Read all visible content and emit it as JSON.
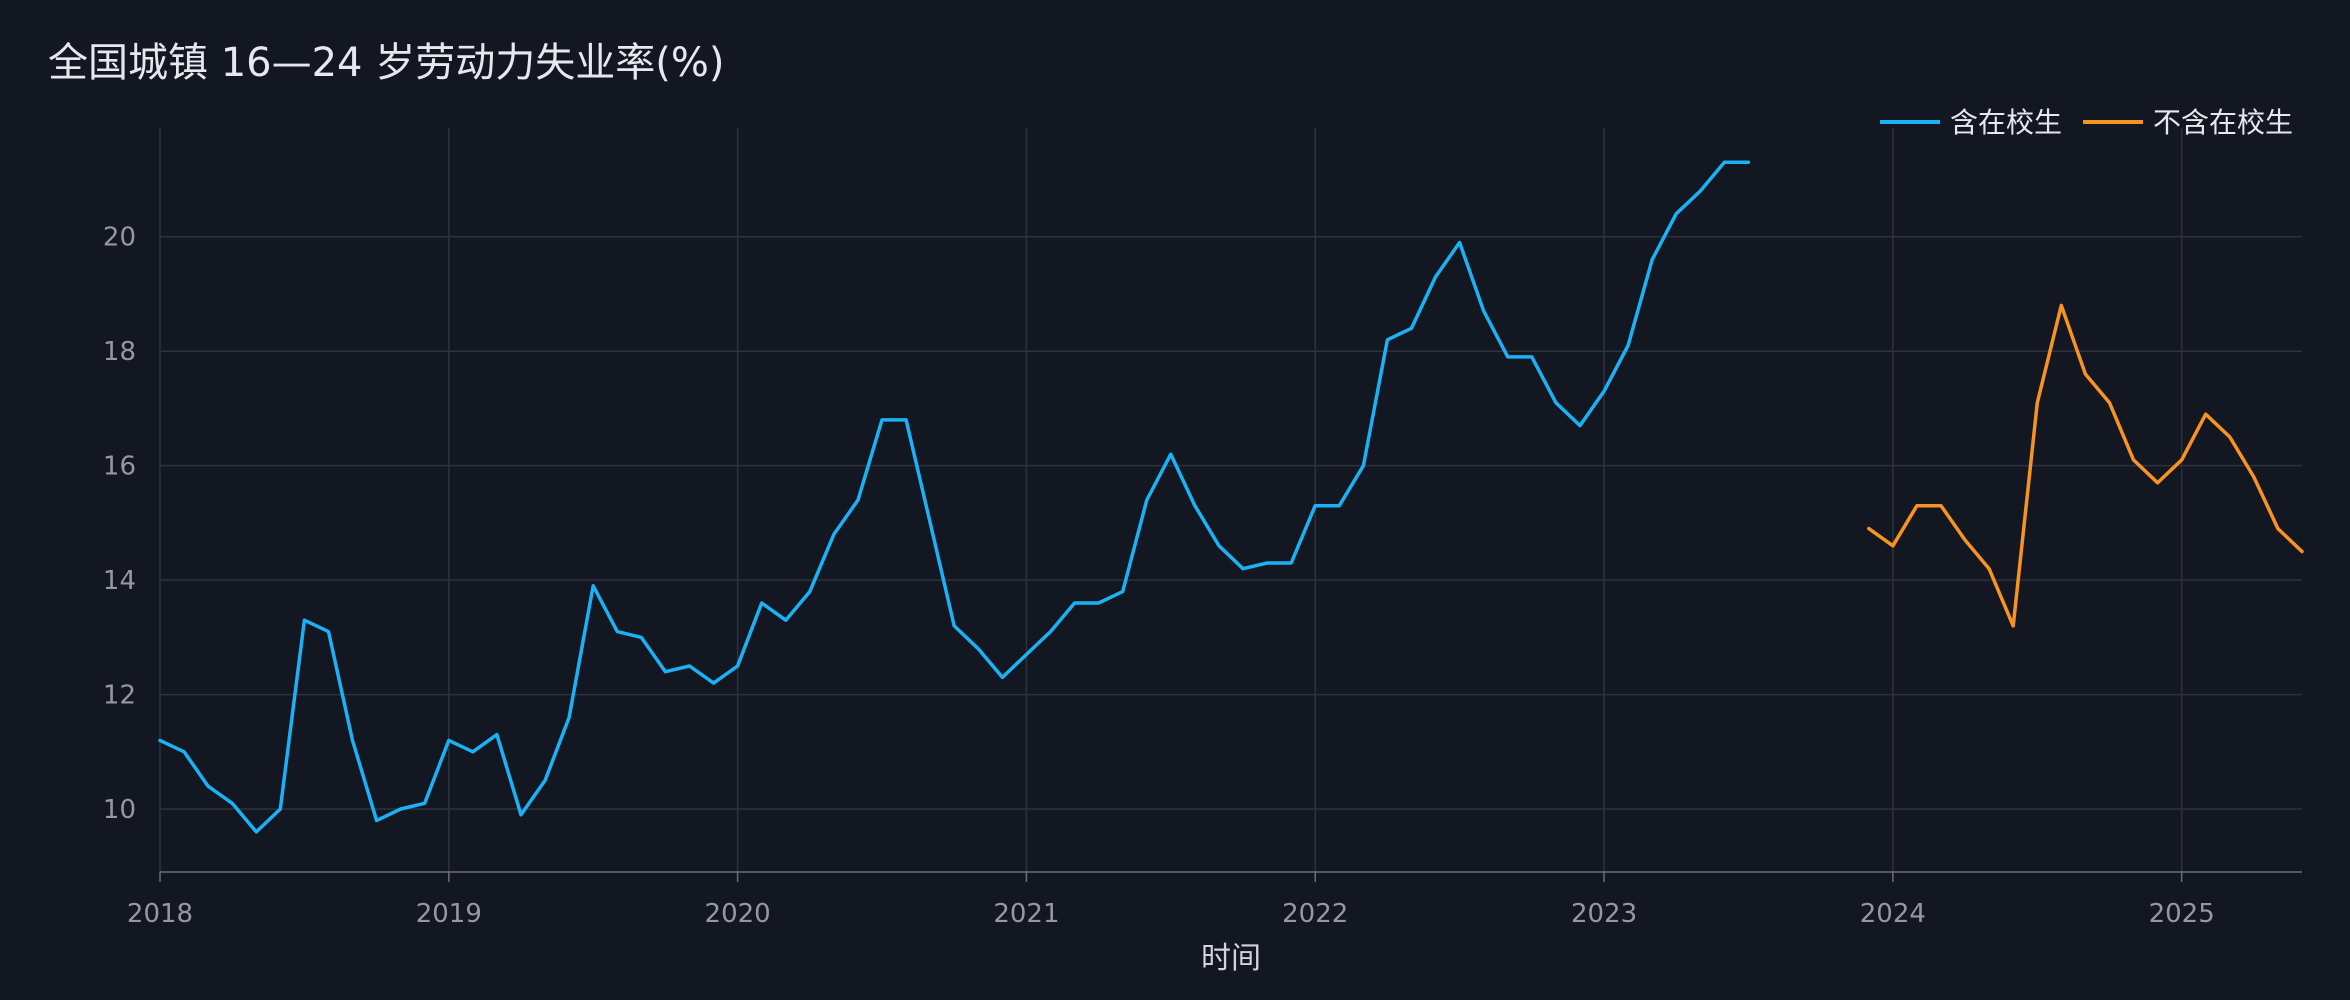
{
  "chart_data": {
    "type": "line",
    "title": "全国城镇 16—24 岁劳动力失业率(%)",
    "xlabel": "时间",
    "ylabel": "",
    "xlim": [
      "2018-01",
      "2025-06"
    ],
    "ylim": [
      8.9,
      21.9
    ],
    "x_ticks": [
      "2018",
      "2019",
      "2020",
      "2021",
      "2022",
      "2023",
      "2024",
      "2025"
    ],
    "y_ticks": [
      10,
      12,
      14,
      16,
      18,
      20
    ],
    "grid": true,
    "legend_position": "top-right",
    "series": [
      {
        "name": "含在校生",
        "color": "#1ab2f5",
        "x": [
          "2018-01",
          "2018-02",
          "2018-03",
          "2018-04",
          "2018-05",
          "2018-06",
          "2018-07",
          "2018-08",
          "2018-09",
          "2018-10",
          "2018-11",
          "2018-12",
          "2019-01",
          "2019-02",
          "2019-03",
          "2019-04",
          "2019-05",
          "2019-06",
          "2019-07",
          "2019-08",
          "2019-09",
          "2019-10",
          "2019-11",
          "2019-12",
          "2020-01",
          "2020-02",
          "2020-03",
          "2020-04",
          "2020-05",
          "2020-06",
          "2020-07",
          "2020-08",
          "2020-09",
          "2020-10",
          "2020-11",
          "2020-12",
          "2021-01",
          "2021-02",
          "2021-03",
          "2021-04",
          "2021-05",
          "2021-06",
          "2021-07",
          "2021-08",
          "2021-09",
          "2021-10",
          "2021-11",
          "2021-12",
          "2022-01",
          "2022-02",
          "2022-03",
          "2022-04",
          "2022-05",
          "2022-06",
          "2022-07",
          "2022-08",
          "2022-09",
          "2022-10",
          "2022-11",
          "2022-12",
          "2023-01",
          "2023-02",
          "2023-03",
          "2023-04",
          "2023-05",
          "2023-06",
          "2023-07"
        ],
        "values": [
          11.2,
          11.0,
          10.4,
          10.1,
          9.6,
          10.0,
          13.3,
          13.1,
          11.2,
          9.8,
          10.0,
          10.1,
          11.2,
          11.0,
          11.3,
          9.9,
          10.5,
          11.6,
          13.9,
          13.1,
          13.0,
          12.4,
          12.5,
          12.2,
          12.5,
          13.6,
          13.3,
          13.8,
          14.8,
          15.4,
          16.8,
          16.8,
          15.0,
          13.2,
          12.8,
          12.3,
          12.7,
          13.1,
          13.6,
          13.6,
          13.8,
          15.4,
          16.2,
          15.3,
          14.6,
          14.2,
          14.3,
          14.3,
          15.3,
          15.3,
          16.0,
          18.2,
          18.4,
          19.3,
          19.9,
          18.7,
          17.9,
          17.9,
          17.1,
          16.7,
          17.3,
          18.1,
          19.6,
          20.4,
          20.8,
          21.3,
          21.3
        ]
      },
      {
        "name": "不含在校生",
        "color": "#f7931e",
        "x": [
          "2023-12",
          "2024-01",
          "2024-02",
          "2024-03",
          "2024-04",
          "2024-05",
          "2024-06",
          "2024-07",
          "2024-08",
          "2024-09",
          "2024-10",
          "2024-11",
          "2024-12",
          "2025-01",
          "2025-02",
          "2025-03",
          "2025-04",
          "2025-05",
          "2025-06"
        ],
        "values": [
          14.9,
          14.6,
          15.3,
          15.3,
          14.7,
          14.2,
          13.2,
          17.1,
          18.8,
          17.6,
          17.1,
          16.1,
          15.7,
          16.1,
          16.9,
          16.5,
          15.8,
          14.9,
          14.5
        ]
      }
    ]
  }
}
